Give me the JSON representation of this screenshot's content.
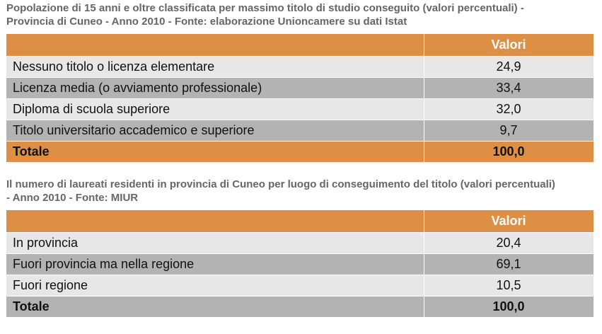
{
  "table1": {
    "caption_line1": "Popolazione di 15 anni e oltre classificata per massimo titolo di studio conseguito (valori percentuali) -",
    "caption_line2": "Provincia di Cuneo - Anno 2010 - Fonte: elaborazione Unioncamere su dati Istat",
    "header_value": "Valori",
    "rows": [
      {
        "label": "Nessuno titolo o licenza elementare",
        "value": "24,9"
      },
      {
        "label": "Licenza media (o avviamento professionale)",
        "value": "33,4"
      },
      {
        "label": "Diploma di scuola superiore",
        "value": "32,0"
      },
      {
        "label": "Titolo universitario accademico e superiore",
        "value": "9,7"
      }
    ],
    "total": {
      "label": "Totale",
      "value": "100,0"
    }
  },
  "table2": {
    "caption_line1": "Il numero di laureati residenti in provincia di Cuneo per luogo di conseguimento del titolo (valori percentuali)",
    "caption_line2": "- Anno 2010 - Fonte: MIUR",
    "header_value": "Valori",
    "rows": [
      {
        "label": "In provincia",
        "value": "20,4"
      },
      {
        "label": "Fuori provincia ma nella regione",
        "value": "69,1"
      },
      {
        "label": "Fuori regione",
        "value": "10,5"
      }
    ],
    "total": {
      "label": "Totale",
      "value": "100,0"
    }
  },
  "colors": {
    "header_orange": "#dc8f45",
    "row_light": "#e7e7e7",
    "row_dark": "#b3b3b3",
    "caption_grey": "#666666"
  }
}
